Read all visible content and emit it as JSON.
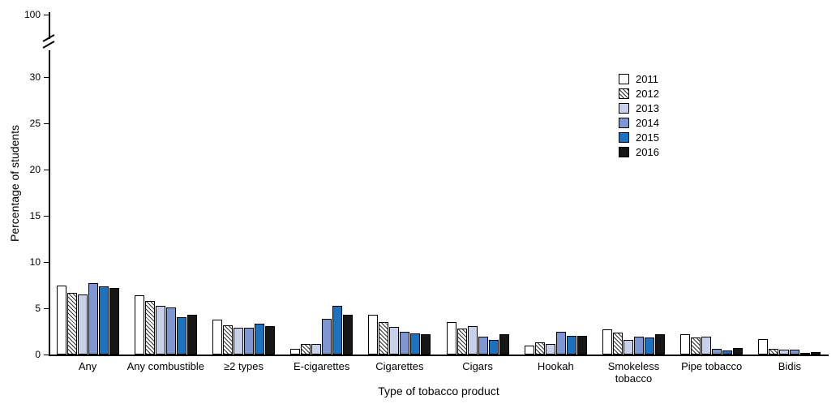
{
  "chart_data": {
    "type": "bar",
    "title": "",
    "xlabel": "Type of tobacco product",
    "ylabel": "Percentage of students",
    "ylim": [
      0,
      100
    ],
    "axis_break": {
      "shown_max": 30,
      "top_tick_label": "100"
    },
    "yticks": [
      0,
      5,
      10,
      15,
      20,
      25,
      30
    ],
    "grid": false,
    "legend_position": "upper-right-inside",
    "categories": [
      "Any",
      "Any combustible",
      "≥2 types",
      "E-cigarettes",
      "Cigarettes",
      "Cigars",
      "Hookah",
      "Smokeless tobacco",
      "Pipe tobacco",
      "Bidis"
    ],
    "category_lines": [
      [
        "Any"
      ],
      [
        "Any combustible"
      ],
      [
        "≥2 types"
      ],
      [
        "E-cigarettes"
      ],
      [
        "Cigarettes"
      ],
      [
        "Cigars"
      ],
      [
        "Hookah"
      ],
      [
        "Smokeless",
        "tobacco"
      ],
      [
        "Pipe tobacco"
      ],
      [
        "Bidis"
      ]
    ],
    "series": [
      {
        "name": "2011",
        "values": [
          7.5,
          6.4,
          3.8,
          0.6,
          4.3,
          3.5,
          1.0,
          2.7,
          2.2,
          1.7
        ]
      },
      {
        "name": "2012",
        "values": [
          6.7,
          5.8,
          3.2,
          1.1,
          3.5,
          2.8,
          1.3,
          2.4,
          1.8,
          0.6
        ]
      },
      {
        "name": "2013",
        "values": [
          6.5,
          5.3,
          2.9,
          1.1,
          3.0,
          3.1,
          1.1,
          1.6,
          1.9,
          0.5
        ]
      },
      {
        "name": "2014",
        "values": [
          7.7,
          5.1,
          2.9,
          3.9,
          2.5,
          1.9,
          2.5,
          1.9,
          0.6,
          0.5
        ]
      },
      {
        "name": "2015",
        "values": [
          7.4,
          4.0,
          3.3,
          5.3,
          2.3,
          1.6,
          2.0,
          1.8,
          0.4,
          0.2
        ]
      },
      {
        "name": "2016",
        "values": [
          7.2,
          4.3,
          3.1,
          4.3,
          2.2,
          2.2,
          2.0,
          2.2,
          0.7,
          0.3
        ]
      }
    ],
    "colors": {
      "2011": {
        "fill": "#ffffff",
        "pattern": "solid"
      },
      "2012": {
        "fill": "#ffffff",
        "pattern": "diagonal-hatch"
      },
      "2013": {
        "fill": "#c9d0e9",
        "pattern": "solid"
      },
      "2014": {
        "fill": "#7e97d3",
        "pattern": "solid"
      },
      "2015": {
        "fill": "#1b72c0",
        "pattern": "solid"
      },
      "2016": {
        "fill": "#161616",
        "pattern": "solid"
      }
    }
  }
}
